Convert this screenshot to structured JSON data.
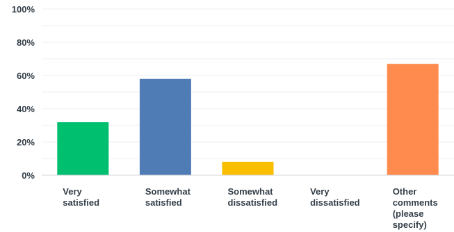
{
  "chart_data": {
    "type": "bar",
    "categories": [
      "Very\nsatisfied",
      "Somewhat\nsatisfied",
      "Somewhat\ndissatisfied",
      "Very\ndissatisfied",
      "Other\ncomments\n(please\nspecify)"
    ],
    "values": [
      32,
      58,
      8,
      0,
      67
    ],
    "colors": [
      "#00bf6f",
      "#507cb6",
      "#f9be00",
      "#6bc8cd",
      "#ff8b4f"
    ],
    "ylim": [
      0,
      100
    ],
    "yticks": [
      "0%",
      "20%",
      "40%",
      "60%",
      "80%",
      "100%"
    ],
    "grid": true
  }
}
